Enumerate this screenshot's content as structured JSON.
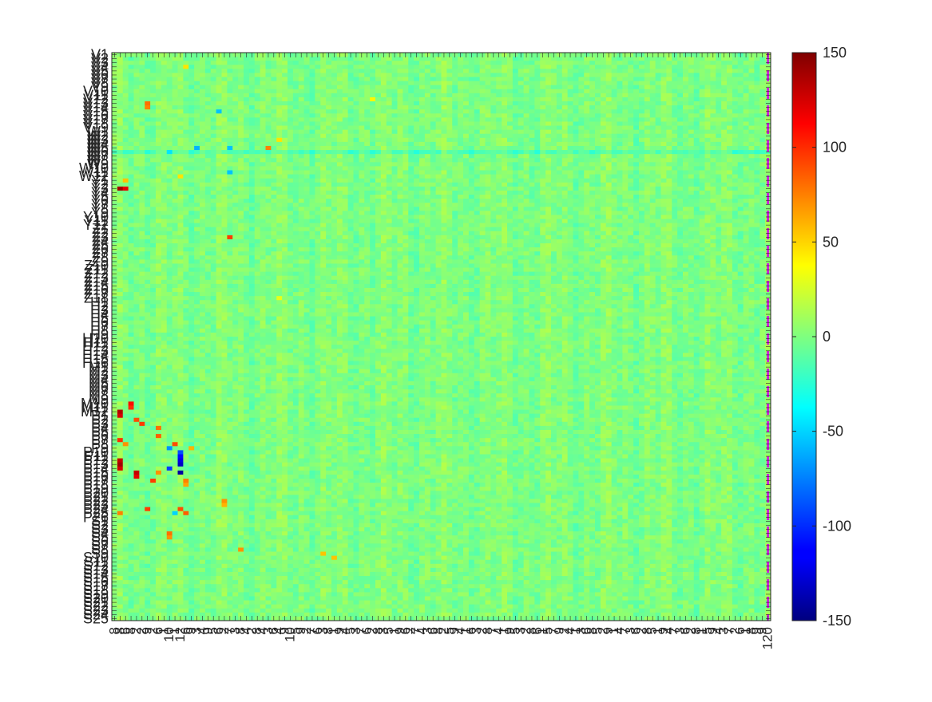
{
  "chart_data": {
    "type": "heatmap",
    "title": "",
    "xlabel": "",
    "ylabel": "",
    "colormap": "jet",
    "colorbar": {
      "range": [
        -150,
        150
      ],
      "ticks": [
        150,
        100,
        50,
        0,
        -50,
        -100,
        -150
      ],
      "tick_labels": [
        "150",
        "100",
        "50",
        "0",
        "-50",
        "-100",
        "-150"
      ]
    },
    "rows": 140,
    "cols": 120,
    "row_labels": [
      "V1",
      "V2",
      "V3",
      "V4",
      "V5",
      "V6",
      "V7",
      "V8",
      "V9",
      "V10",
      "V11",
      "V12",
      "V13",
      "V14",
      "V15",
      "V16",
      "V17",
      "V18",
      "V19",
      "W1",
      "W2",
      "W3",
      "W4",
      "W5",
      "W6",
      "W7",
      "W8",
      "W9",
      "W10",
      "W11",
      "W12",
      "Y1",
      "Y2",
      "Y3",
      "Y4",
      "Y5",
      "Y6",
      "Y7",
      "Y8",
      "Y9",
      "Y10",
      "Y11",
      "Y12",
      "Z1",
      "Z2",
      "Z3",
      "Z4",
      "Z5",
      "Z6",
      "Z7",
      "Z8",
      "Z9",
      "Z10",
      "Z11",
      "Z12",
      "Z13",
      "Z14",
      "Z15",
      "Z16",
      "Z17",
      "Z18",
      "H1",
      "H2",
      "H3",
      "H4",
      "H5",
      "H6",
      "H7",
      "H8",
      "H9",
      "H10",
      "H11",
      "H12",
      "H13",
      "H14",
      "H15",
      "H16",
      "M1",
      "M2",
      "M3",
      "M4",
      "M5",
      "M6",
      "M7",
      "M8",
      "M9",
      "M10",
      "M11",
      "M12",
      "P1",
      "P2",
      "P3",
      "P4",
      "P5",
      "P6",
      "P7",
      "P8",
      "P9",
      "P10",
      "P11",
      "P12",
      "P13",
      "P14",
      "P15",
      "P16",
      "P17",
      "P18",
      "P19",
      "P20",
      "P21",
      "P22",
      "P23",
      "P24",
      "P25",
      "P26",
      "S1",
      "S2",
      "S3",
      "S4",
      "S5",
      "S6",
      "S7",
      "S8",
      "S9",
      "S10",
      "S11",
      "S12",
      "S13",
      "S14",
      "S15",
      "S16",
      "S17",
      "S18",
      "S19",
      "S20",
      "S21",
      "S22",
      "S23",
      "S24",
      "S25",
      "S26",
      "S27",
      "S14"
    ],
    "x_tick_labels": [
      "8",
      "8",
      "6",
      "8",
      "2",
      "2",
      "9",
      "2",
      "6",
      "1",
      "10",
      "1",
      "12",
      "6",
      "9",
      "3",
      "4",
      "9",
      "5",
      "6",
      "2",
      "7",
      "3",
      "8",
      "4",
      "2",
      "8",
      "4",
      "3",
      "6",
      "4",
      "9",
      "10",
      "5",
      "9",
      "2",
      "7",
      "6",
      "3",
      "8",
      "1",
      "9",
      "4",
      "5",
      "3",
      "7",
      "6",
      "2",
      "8",
      "3",
      "5",
      "1",
      "9",
      "6",
      "2",
      "7",
      "4",
      "3",
      "6",
      "8",
      "2",
      "5",
      "9",
      "4",
      "1",
      "6",
      "3",
      "2",
      "8",
      "7",
      "4",
      "1",
      "9",
      "5",
      "3",
      "2",
      "8",
      "6",
      "1",
      "5",
      "7",
      "9",
      "2",
      "4",
      "1",
      "3",
      "6",
      "8",
      "5",
      "2",
      "9",
      "1",
      "4",
      "7",
      "3",
      "6",
      "2",
      "8",
      "5",
      "1",
      "9",
      "4",
      "7",
      "3",
      "6",
      "2",
      "8",
      "1",
      "5",
      "9",
      "4",
      "3",
      "7",
      "2",
      "6",
      "1",
      "8",
      "9",
      "9",
      "120"
    ],
    "hotspots": [
      {
        "row": 33,
        "col": 1,
        "value": 140
      },
      {
        "row": 33,
        "col": 2,
        "value": 120
      },
      {
        "row": 31,
        "col": 2,
        "value": 55
      },
      {
        "row": 60,
        "col": 30,
        "value": 30
      },
      {
        "row": 3,
        "col": 13,
        "value": 45
      },
      {
        "row": 13,
        "col": 6,
        "value": 75
      },
      {
        "row": 12,
        "col": 6,
        "value": 80
      },
      {
        "row": 23,
        "col": 15,
        "value": -60
      },
      {
        "row": 23,
        "col": 21,
        "value": -55
      },
      {
        "row": 24,
        "col": 10,
        "value": -45
      },
      {
        "row": 29,
        "col": 21,
        "value": -55
      },
      {
        "row": 30,
        "col": 12,
        "value": 45
      },
      {
        "row": 45,
        "col": 21,
        "value": 95
      },
      {
        "row": 88,
        "col": 1,
        "value": 135
      },
      {
        "row": 89,
        "col": 1,
        "value": 125
      },
      {
        "row": 86,
        "col": 3,
        "value": 110
      },
      {
        "row": 87,
        "col": 3,
        "value": 100
      },
      {
        "row": 90,
        "col": 4,
        "value": 90
      },
      {
        "row": 91,
        "col": 5,
        "value": 95
      },
      {
        "row": 94,
        "col": 8,
        "value": 85
      },
      {
        "row": 92,
        "col": 8,
        "value": 80
      },
      {
        "row": 96,
        "col": 11,
        "value": 90
      },
      {
        "row": 97,
        "col": 10,
        "value": -70
      },
      {
        "row": 98,
        "col": 12,
        "value": -90
      },
      {
        "row": 99,
        "col": 12,
        "value": -110
      },
      {
        "row": 100,
        "col": 12,
        "value": -120
      },
      {
        "row": 101,
        "col": 12,
        "value": -130
      },
      {
        "row": 102,
        "col": 10,
        "value": -95
      },
      {
        "row": 103,
        "col": 12,
        "value": -140
      },
      {
        "row": 97,
        "col": 14,
        "value": 60
      },
      {
        "row": 100,
        "col": 1,
        "value": 130
      },
      {
        "row": 101,
        "col": 1,
        "value": 140
      },
      {
        "row": 102,
        "col": 1,
        "value": 125
      },
      {
        "row": 103,
        "col": 4,
        "value": 130
      },
      {
        "row": 104,
        "col": 4,
        "value": 120
      },
      {
        "row": 105,
        "col": 7,
        "value": 95
      },
      {
        "row": 105,
        "col": 13,
        "value": 75
      },
      {
        "row": 106,
        "col": 13,
        "value": 65
      },
      {
        "row": 103,
        "col": 8,
        "value": 70
      },
      {
        "row": 110,
        "col": 20,
        "value": 70
      },
      {
        "row": 111,
        "col": 20,
        "value": 60
      },
      {
        "row": 112,
        "col": 12,
        "value": 90
      },
      {
        "row": 113,
        "col": 13,
        "value": 85
      },
      {
        "row": 112,
        "col": 6,
        "value": 95
      },
      {
        "row": 113,
        "col": 1,
        "value": 75
      },
      {
        "row": 113,
        "col": 11,
        "value": -50
      },
      {
        "row": 118,
        "col": 10,
        "value": 80
      },
      {
        "row": 119,
        "col": 10,
        "value": 70
      },
      {
        "row": 123,
        "col": 38,
        "value": 55
      },
      {
        "row": 124,
        "col": 40,
        "value": 55
      },
      {
        "row": 122,
        "col": 23,
        "value": 70
      },
      {
        "row": 23,
        "col": 28,
        "value": 75
      },
      {
        "row": 21,
        "col": 30,
        "value": 45
      },
      {
        "row": 95,
        "col": 1,
        "value": 100
      },
      {
        "row": 96,
        "col": 2,
        "value": 70
      },
      {
        "row": 11,
        "col": 47,
        "value": 40
      },
      {
        "row": 14,
        "col": 19,
        "value": -55
      }
    ],
    "reference_line": {
      "col": 119,
      "style": "dashed",
      "color": "#cc22dd"
    }
  }
}
